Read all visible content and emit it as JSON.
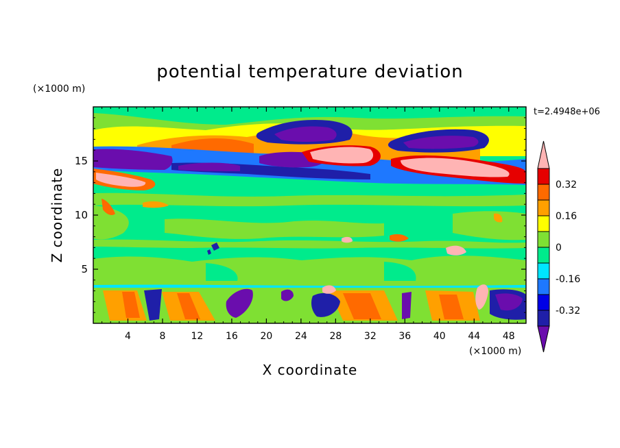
{
  "chart_data": {
    "type": "heatmap",
    "title": "potential temperature deviation",
    "xlabel": "X coordinate",
    "ylabel": "Z coordinate",
    "x_unit": "(×1000 m)",
    "y_unit": "(×1000 m)",
    "time_label": "t=2.4948e+06",
    "xlim": [
      0,
      50
    ],
    "ylim": [
      0,
      20
    ],
    "x_ticks": [
      4,
      8,
      12,
      16,
      20,
      24,
      28,
      32,
      36,
      40,
      44,
      48
    ],
    "x_tick_labels": [
      "4",
      "8",
      "12",
      "16",
      "20",
      "24",
      "28",
      "32",
      "36",
      "40",
      "44",
      "48"
    ],
    "y_ticks": [
      5,
      10,
      15
    ],
    "y_tick_labels": [
      "5",
      "10",
      "15"
    ],
    "colorbar": {
      "levels": [
        -0.4,
        -0.32,
        -0.24,
        -0.16,
        -0.08,
        0,
        0.08,
        0.16,
        0.24,
        0.32,
        0.4
      ],
      "colors": [
        "#6a0dad",
        "#1f1fa8",
        "#0000e6",
        "#1e78ff",
        "#00e6ff",
        "#00eb8c",
        "#7fe033",
        "#ffff00",
        "#ffa000",
        "#ff6a00",
        "#e60000",
        "#ffb4b4"
      ],
      "tick_labels": [
        "0.32",
        "0.16",
        "0",
        "-0.16",
        "-0.32"
      ],
      "tick_values": [
        0.32,
        0.16,
        0,
        -0.16,
        -0.32
      ]
    },
    "regions": [
      {
        "name": "upper-left-cold",
        "x": [
          0,
          9
        ],
        "z": [
          14.3,
          16.2
        ],
        "value": -0.36
      },
      {
        "name": "upper-center-cold",
        "x": [
          9,
          26
        ],
        "z": [
          13.6,
          14.6
        ],
        "value": -0.36
      },
      {
        "name": "upper-right-cold",
        "x": [
          25,
          50
        ],
        "z": [
          12.9,
          13.8
        ],
        "value": -0.2
      },
      {
        "name": "top-cold-1",
        "x": [
          26,
          32
        ],
        "z": [
          16.6,
          18.0
        ],
        "value": -0.36
      },
      {
        "name": "top-cold-2",
        "x": [
          36,
          46
        ],
        "z": [
          16.0,
          17.6
        ],
        "value": -0.36
      },
      {
        "name": "top-cold-3",
        "x": [
          19,
          26
        ],
        "z": [
          14.4,
          15.7
        ],
        "value": -0.36
      },
      {
        "name": "upper-warm-left",
        "x": [
          0,
          7
        ],
        "z": [
          12.5,
          13.7
        ],
        "value": 0.44
      },
      {
        "name": "upper-warm-center",
        "x": [
          26,
          34
        ],
        "z": [
          15.0,
          16.5
        ],
        "value": 0.44
      },
      {
        "name": "upper-warm-right",
        "x": [
          36,
          46
        ],
        "z": [
          13.6,
          15.2
        ],
        "value": 0.44
      },
      {
        "name": "upper-orange-band",
        "x": [
          9,
          24
        ],
        "z": [
          15.5,
          17.0
        ],
        "value": 0.28
      },
      {
        "name": "midlevel-neutral",
        "x": [
          0,
          50
        ],
        "z": [
          3.5,
          12.0
        ],
        "value": 0.0
      },
      {
        "name": "low-warm-cells",
        "x": [
          0,
          50
        ],
        "z": [
          0,
          3.3
        ],
        "value": 0.24
      },
      {
        "name": "low-cold-cells",
        "x": [
          16,
          46
        ],
        "z": [
          0,
          3.3
        ],
        "value": -0.32
      },
      {
        "name": "low-warm-blob",
        "x": [
          44,
          45.5
        ],
        "z": [
          1.3,
          3.5
        ],
        "value": 0.44
      }
    ]
  }
}
